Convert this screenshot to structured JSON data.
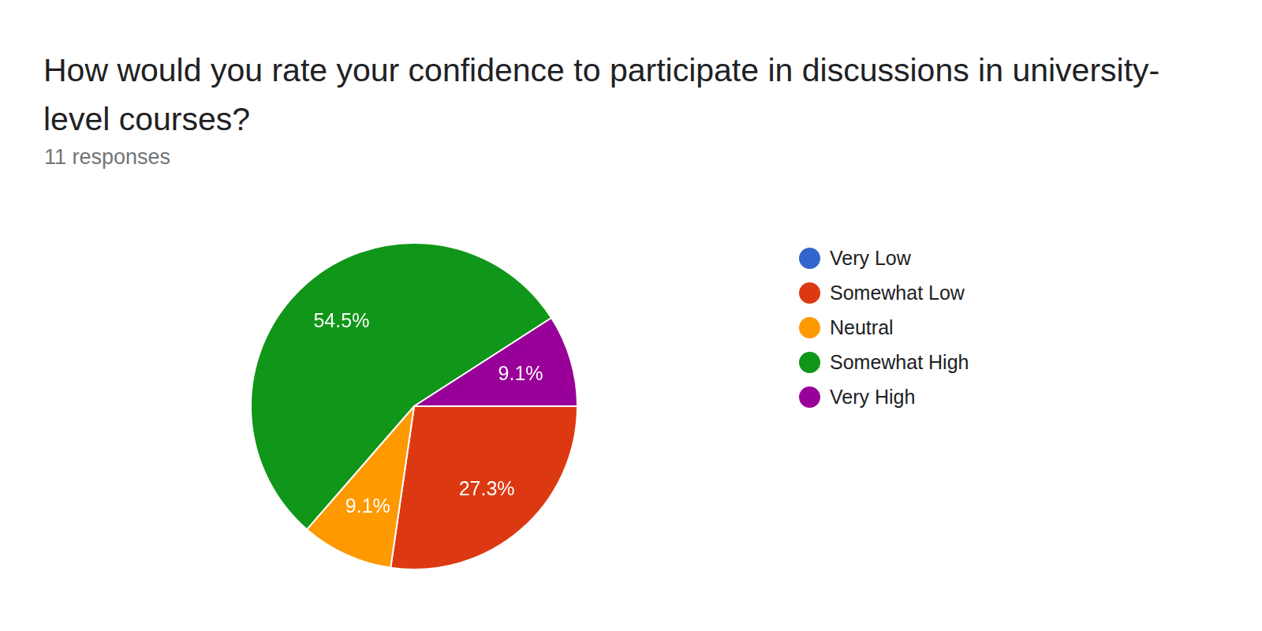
{
  "chart_data": {
    "type": "pie",
    "title": "How would you rate your confidence to participate in discussions in university-level courses?",
    "subtitle": "11 responses",
    "categories": [
      "Very Low",
      "Somewhat Low",
      "Neutral",
      "Somewhat High",
      "Very High"
    ],
    "values": [
      0,
      27.3,
      9.1,
      54.5,
      9.1
    ],
    "value_labels": [
      null,
      "27.3%",
      "9.1%",
      "54.5%",
      "9.1%"
    ],
    "colors": [
      "#3366cc",
      "#dc3912",
      "#ff9900",
      "#109618",
      "#990099"
    ],
    "legend": "right",
    "data_labels": true
  }
}
